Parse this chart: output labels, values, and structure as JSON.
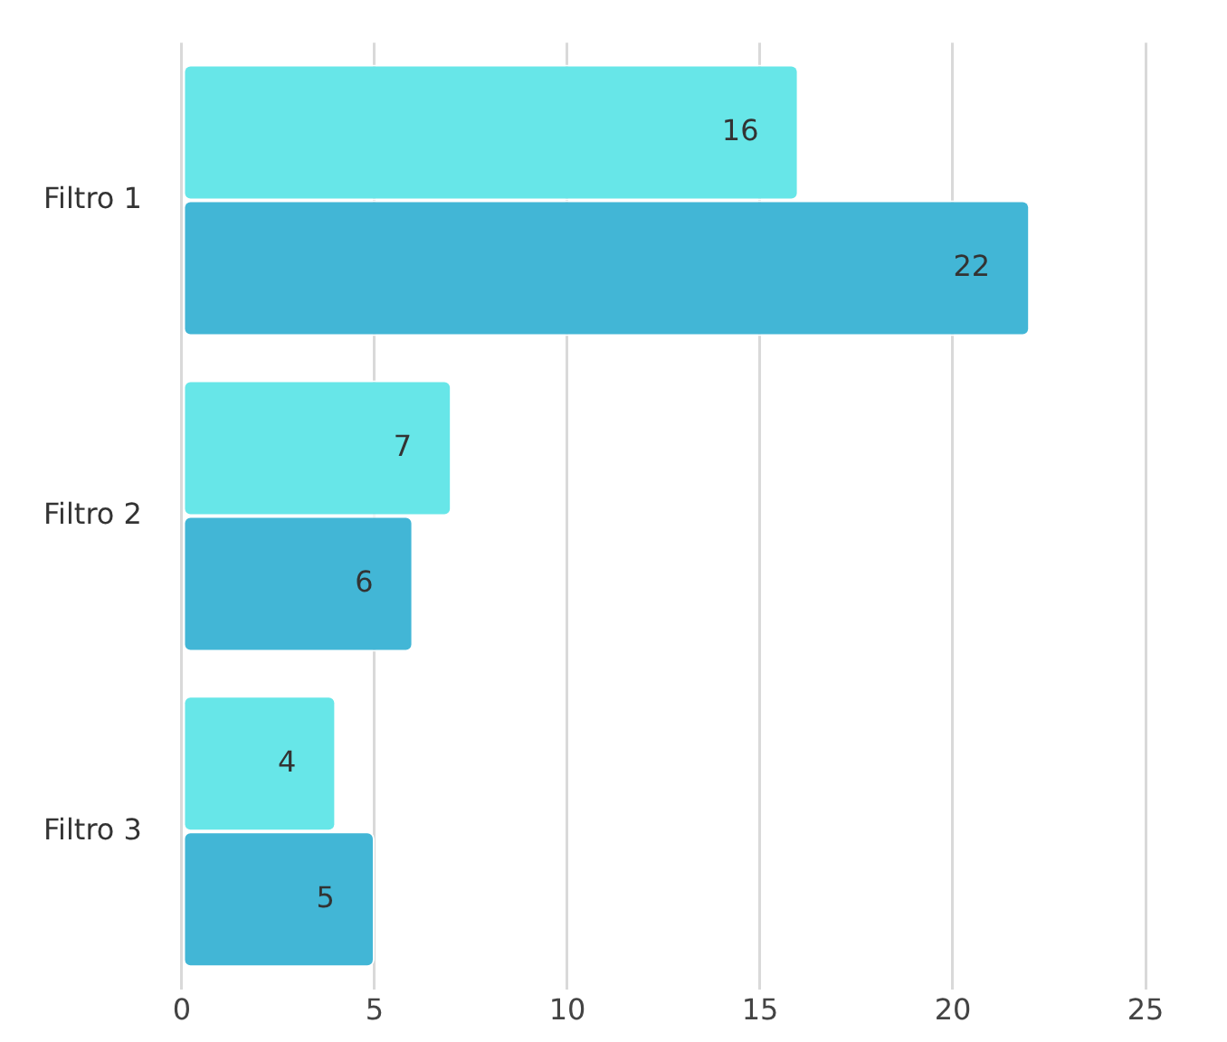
{
  "chart_data": {
    "type": "bar",
    "orientation": "horizontal",
    "categories": [
      "Filtro 1",
      "Filtro 2",
      "Filtro 3"
    ],
    "series": [
      {
        "color": "#67e6e8",
        "values": [
          16,
          7,
          4
        ]
      },
      {
        "color": "#42b6d6",
        "values": [
          22,
          6,
          5
        ]
      }
    ],
    "xlim": [
      0,
      25
    ],
    "xticks": [
      0,
      5,
      10,
      15,
      20,
      25
    ],
    "grid": "x",
    "data_labels": true,
    "legend": false
  }
}
